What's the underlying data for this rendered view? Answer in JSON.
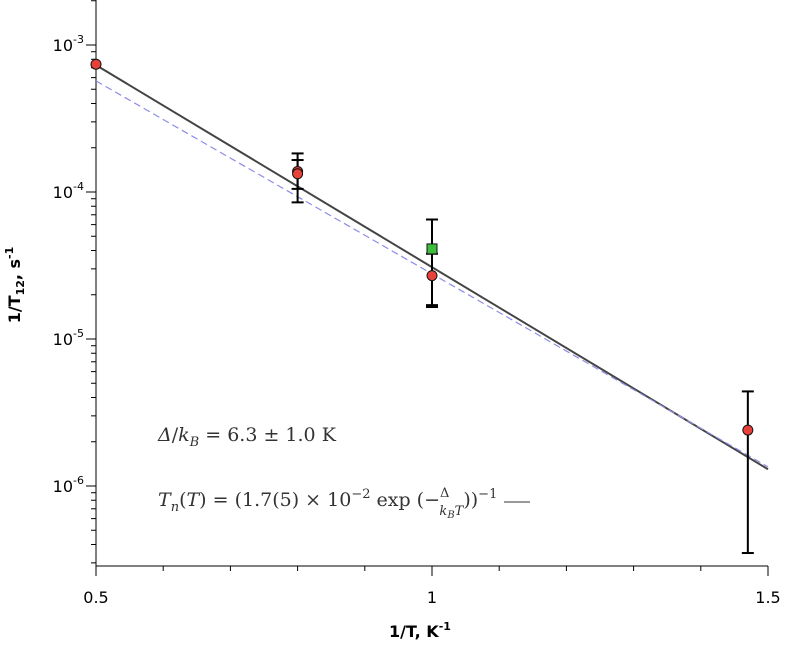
{
  "chart_data": {
    "type": "scatter",
    "title": "",
    "xlabel": "1/T, K",
    "xlabel_sup": "-1",
    "ylabel_main": "1/T",
    "ylabel_sub": "12",
    "ylabel_unit": ", s",
    "ylabel_sup": "-1",
    "xlim": [
      0.5,
      1.5
    ],
    "ylim": [
      3e-07,
      0.002
    ],
    "yscale": "log",
    "xticks": [
      0.5,
      1,
      1.5
    ],
    "xtick_labels": [
      "0.5",
      "1",
      "1.5"
    ],
    "yticks": [
      1e-06,
      1e-05,
      0.0001,
      0.001
    ],
    "ytick_labels": [
      {
        "base": "10",
        "exp": "-6"
      },
      {
        "base": "10",
        "exp": "-5"
      },
      {
        "base": "10",
        "exp": "-4"
      },
      {
        "base": "10",
        "exp": "-3"
      }
    ],
    "grid": false,
    "series": [
      {
        "marker": "circle",
        "color": "#e8413a",
        "points": [
          {
            "x": 0.5,
            "y": 0.00074
          },
          {
            "x": 0.8,
            "y": 0.000138,
            "err_low": 0.000105,
            "err_high": 0.000183
          },
          {
            "x": 0.8,
            "y": 0.000133,
            "err_low": 8.5e-05,
            "err_high": 0.000165
          },
          {
            "x": 1.0,
            "y": 2.7e-05,
            "err_low": 1.65e-05,
            "err_high": 3.8e-05
          },
          {
            "x": 1.47,
            "y": 2.4e-06,
            "err_low": 3.5e-07,
            "err_high": 4.4e-06
          }
        ]
      },
      {
        "marker": "square",
        "color": "#3dbf3d",
        "points": [
          {
            "x": 1.0,
            "y": 4.1e-05,
            "err_low": 1.7e-05,
            "err_high": 6.5e-05
          }
        ]
      },
      {
        "line": "solid",
        "color": "#444444",
        "points": [
          {
            "x": 0.5,
            "y": 0.00073
          },
          {
            "x": 1.5,
            "y": 1.3e-06
          }
        ]
      },
      {
        "line": "dashed",
        "color": "#8c8ce8",
        "points": [
          {
            "x": 0.5,
            "y": 0.00057
          },
          {
            "x": 1.5,
            "y": 1.35e-06
          }
        ]
      }
    ],
    "annotations": [
      "Δ/k_B = 6.3 ± 1.0 K",
      "T_n(T) = (1.7(5) × 10^-2 exp(−Δ/(k_B T)))^-1"
    ]
  },
  "colors": {
    "axis": "#000000",
    "fit_line": "#444444",
    "dashed_line": "#8c8ce8",
    "circle_fill": "#e8413a",
    "square_fill": "#3dbf3d"
  }
}
